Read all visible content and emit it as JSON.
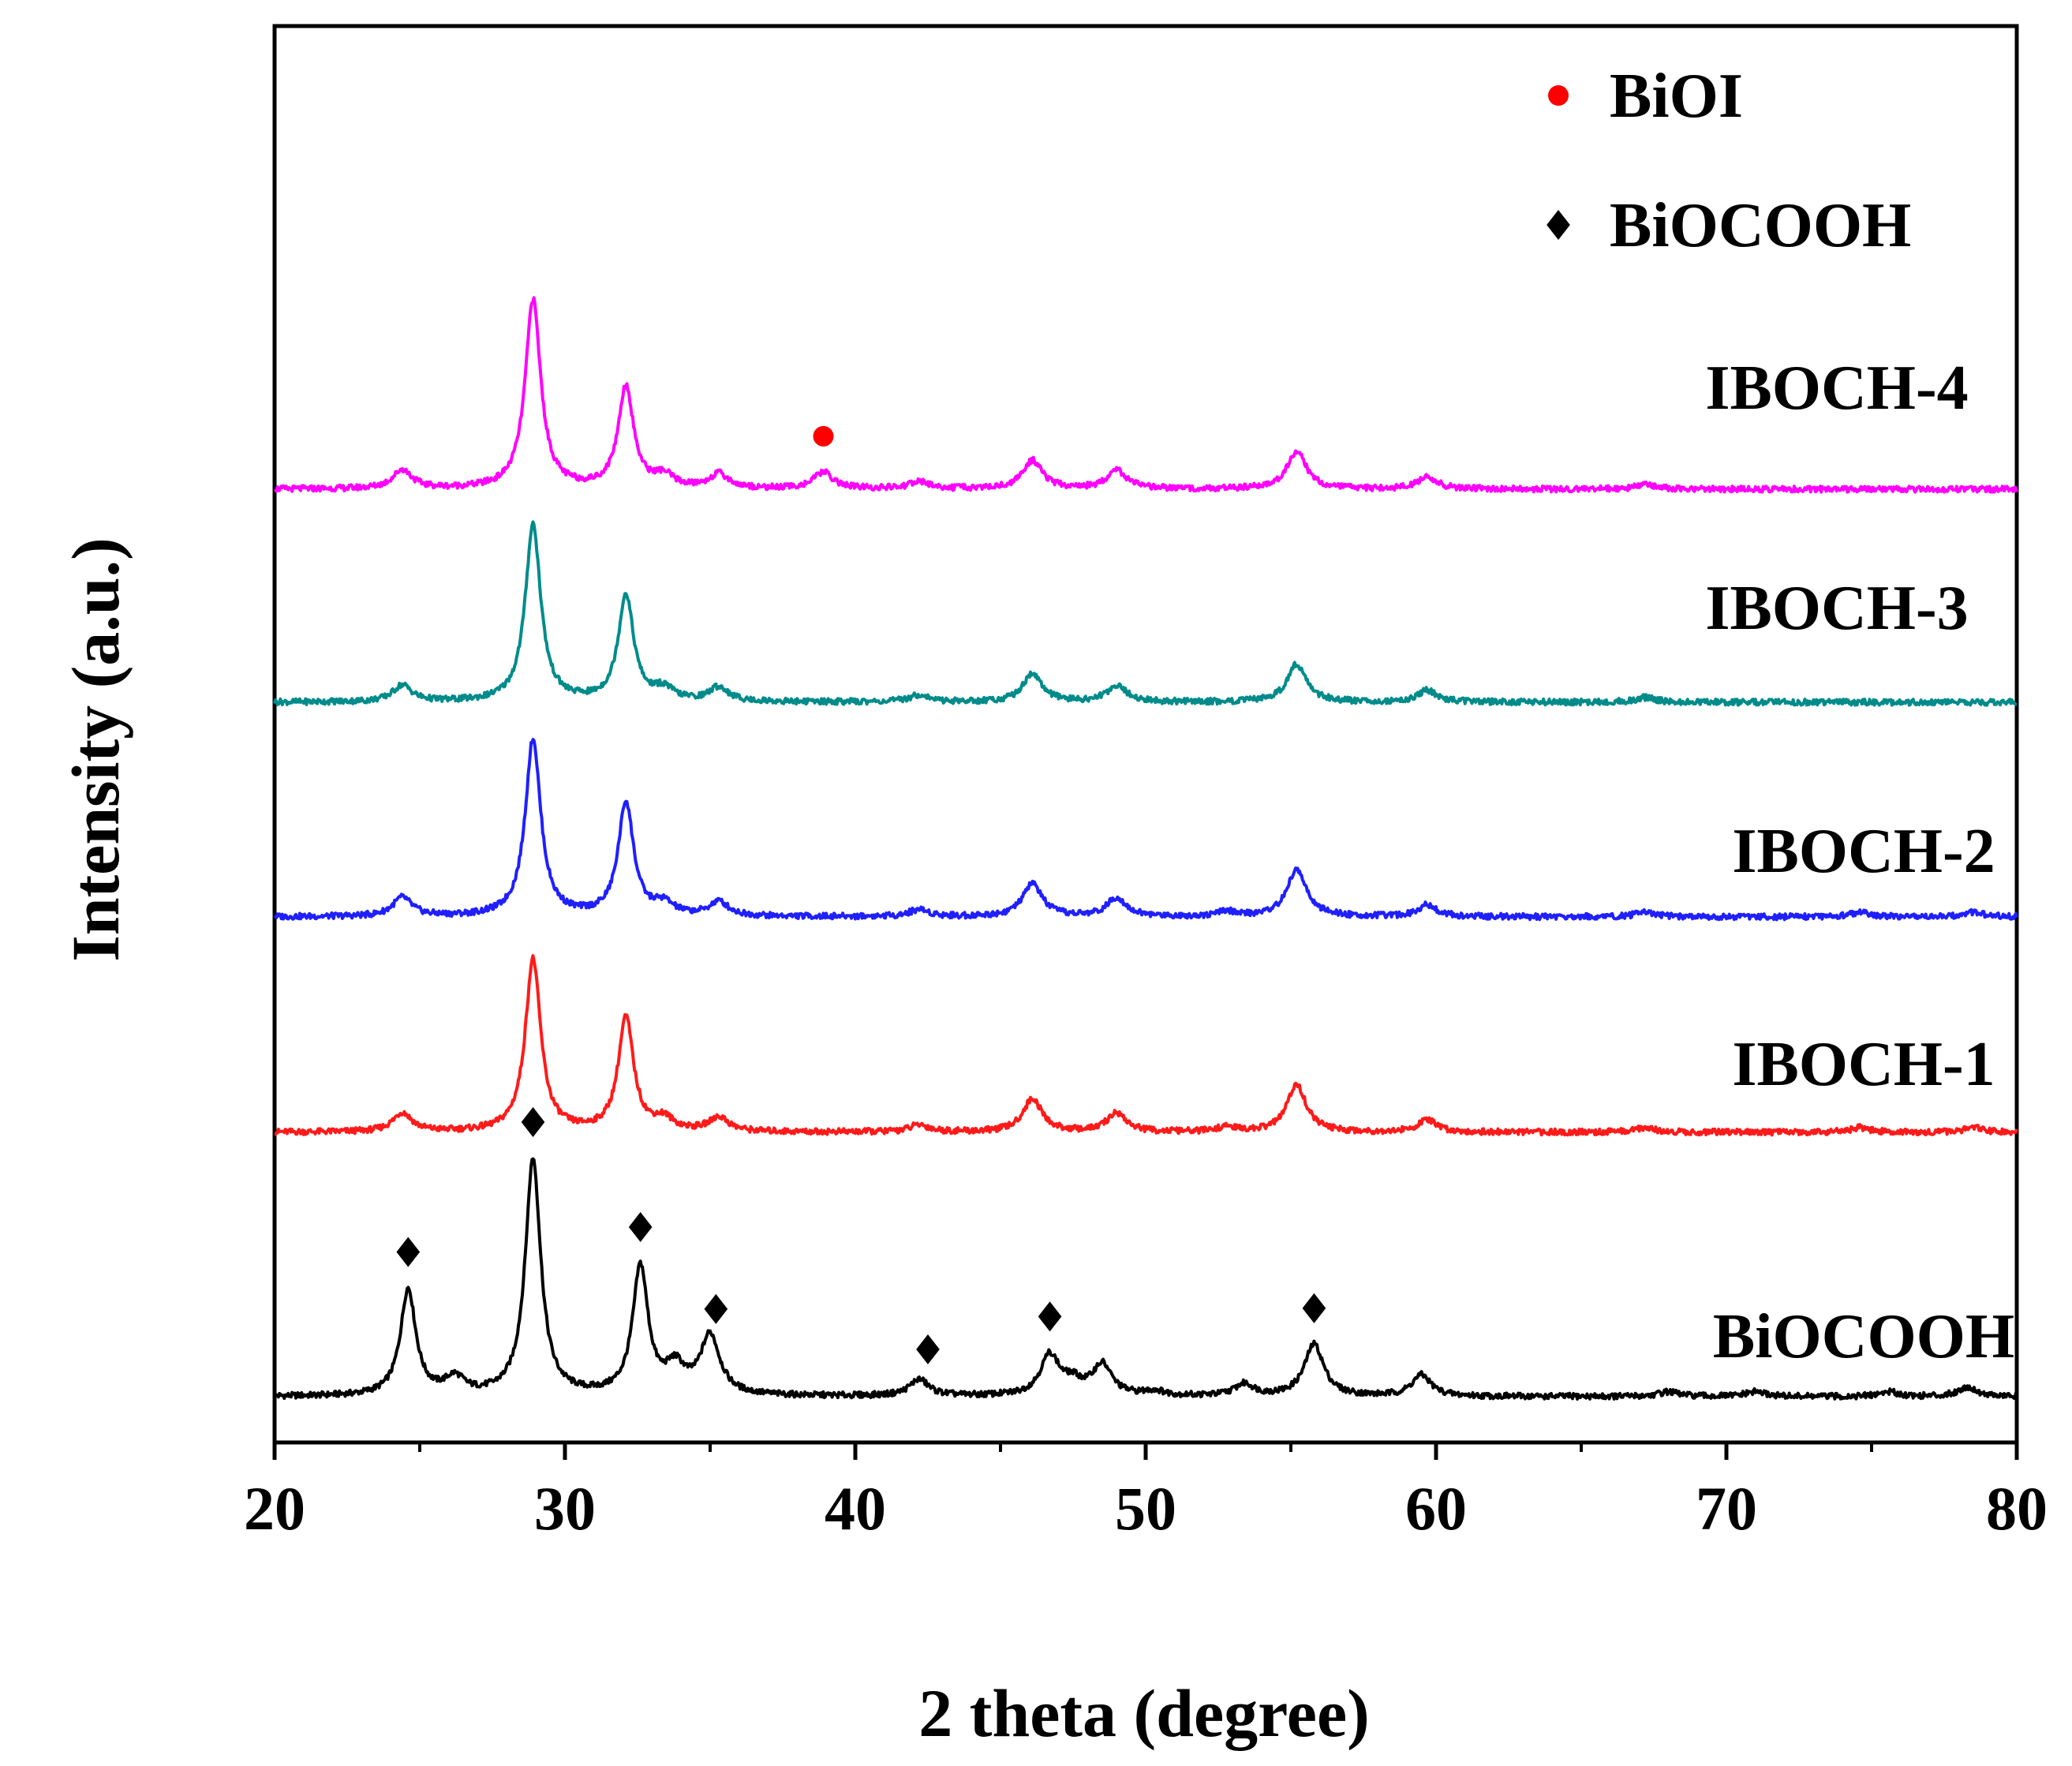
{
  "chart_data": {
    "type": "line",
    "title": "",
    "xlabel": "2 theta (degree)",
    "ylabel": "Intensity (a.u.)",
    "xlim": [
      20,
      80
    ],
    "xticks": [
      "20",
      "30",
      "40",
      "50",
      "60",
      "70",
      "80"
    ],
    "yticks_shown": false,
    "grid": false,
    "offset_stack": true,
    "legend": {
      "position": "top-right",
      "entries": [
        {
          "label": "BiOI",
          "marker": "circle",
          "color": "#ff0000"
        },
        {
          "label": "BiOCOOH",
          "marker": "diamond",
          "color": "#000000"
        }
      ]
    },
    "series": [
      {
        "name": "BiOCOOH",
        "color": "#000000",
        "baseline": 0,
        "peaks": [
          [
            24.6,
            0.45
          ],
          [
            26.2,
            0.07
          ],
          [
            28.9,
            1.0
          ],
          [
            32.6,
            0.54
          ],
          [
            33.8,
            0.11
          ],
          [
            35.0,
            0.25
          ],
          [
            42.2,
            0.07
          ],
          [
            46.7,
            0.17
          ],
          [
            47.5,
            0.05
          ],
          [
            48.5,
            0.13
          ],
          [
            50.3,
            0.02
          ],
          [
            53.4,
            0.05
          ],
          [
            55.8,
            0.22
          ],
          [
            59.5,
            0.09
          ],
          [
            68.0,
            0.02
          ],
          [
            71.0,
            0.02
          ],
          [
            75.6,
            0.02
          ],
          [
            78.3,
            0.04
          ]
        ]
      },
      {
        "name": "IBOCH-1",
        "color": "#ff1a1a",
        "baseline": 1.0,
        "peaks": [
          [
            24.4,
            0.08
          ],
          [
            28.9,
            0.73
          ],
          [
            32.1,
            0.48
          ],
          [
            33.4,
            0.05
          ],
          [
            35.3,
            0.06
          ],
          [
            42.2,
            0.03
          ],
          [
            46.1,
            0.14
          ],
          [
            49.0,
            0.08
          ],
          [
            52.8,
            0.02
          ],
          [
            55.2,
            0.2
          ],
          [
            59.7,
            0.05
          ],
          [
            67.2,
            0.02
          ],
          [
            74.6,
            0.02
          ],
          [
            78.5,
            0.02
          ]
        ]
      },
      {
        "name": "IBOCH-2",
        "color": "#1f1fff",
        "baseline": 2.0,
        "peaks": [
          [
            24.4,
            0.08
          ],
          [
            28.9,
            0.75
          ],
          [
            32.1,
            0.48
          ],
          [
            33.4,
            0.05
          ],
          [
            35.3,
            0.06
          ],
          [
            42.2,
            0.03
          ],
          [
            46.1,
            0.14
          ],
          [
            49.0,
            0.08
          ],
          [
            52.8,
            0.02
          ],
          [
            55.2,
            0.2
          ],
          [
            59.7,
            0.05
          ],
          [
            67.2,
            0.02
          ],
          [
            74.6,
            0.02
          ],
          [
            78.5,
            0.02
          ]
        ]
      },
      {
        "name": "IBOCH-3",
        "color": "#008b8b",
        "baseline": 3.0,
        "peaks": [
          [
            24.4,
            0.07
          ],
          [
            28.9,
            0.75
          ],
          [
            32.1,
            0.45
          ],
          [
            33.4,
            0.05
          ],
          [
            35.3,
            0.06
          ],
          [
            42.2,
            0.03
          ],
          [
            46.1,
            0.12
          ],
          [
            49.0,
            0.07
          ],
          [
            55.2,
            0.16
          ],
          [
            59.7,
            0.05
          ],
          [
            67.2,
            0.02
          ]
        ]
      },
      {
        "name": "IBOCH-4",
        "color": "#ff00ff",
        "baseline": 4.0,
        "peaks": [
          [
            24.4,
            0.08
          ],
          [
            28.9,
            0.8
          ],
          [
            32.1,
            0.43
          ],
          [
            33.4,
            0.05
          ],
          [
            35.3,
            0.06
          ],
          [
            38.9,
            0.07
          ],
          [
            42.2,
            0.03
          ],
          [
            46.1,
            0.12
          ],
          [
            49.0,
            0.08
          ],
          [
            55.2,
            0.16
          ],
          [
            59.7,
            0.05
          ],
          [
            67.2,
            0.02
          ]
        ]
      }
    ],
    "annotations": [
      {
        "marker": "diamond",
        "color": "#000000",
        "series": "BiOCOOH",
        "x": [
          24.6,
          28.9,
          32.6,
          35.2,
          42.5,
          46.7,
          55.8
        ]
      },
      {
        "marker": "circle",
        "color": "#ff0000",
        "series": "IBOCH-4",
        "x": [
          38.9
        ]
      }
    ]
  }
}
